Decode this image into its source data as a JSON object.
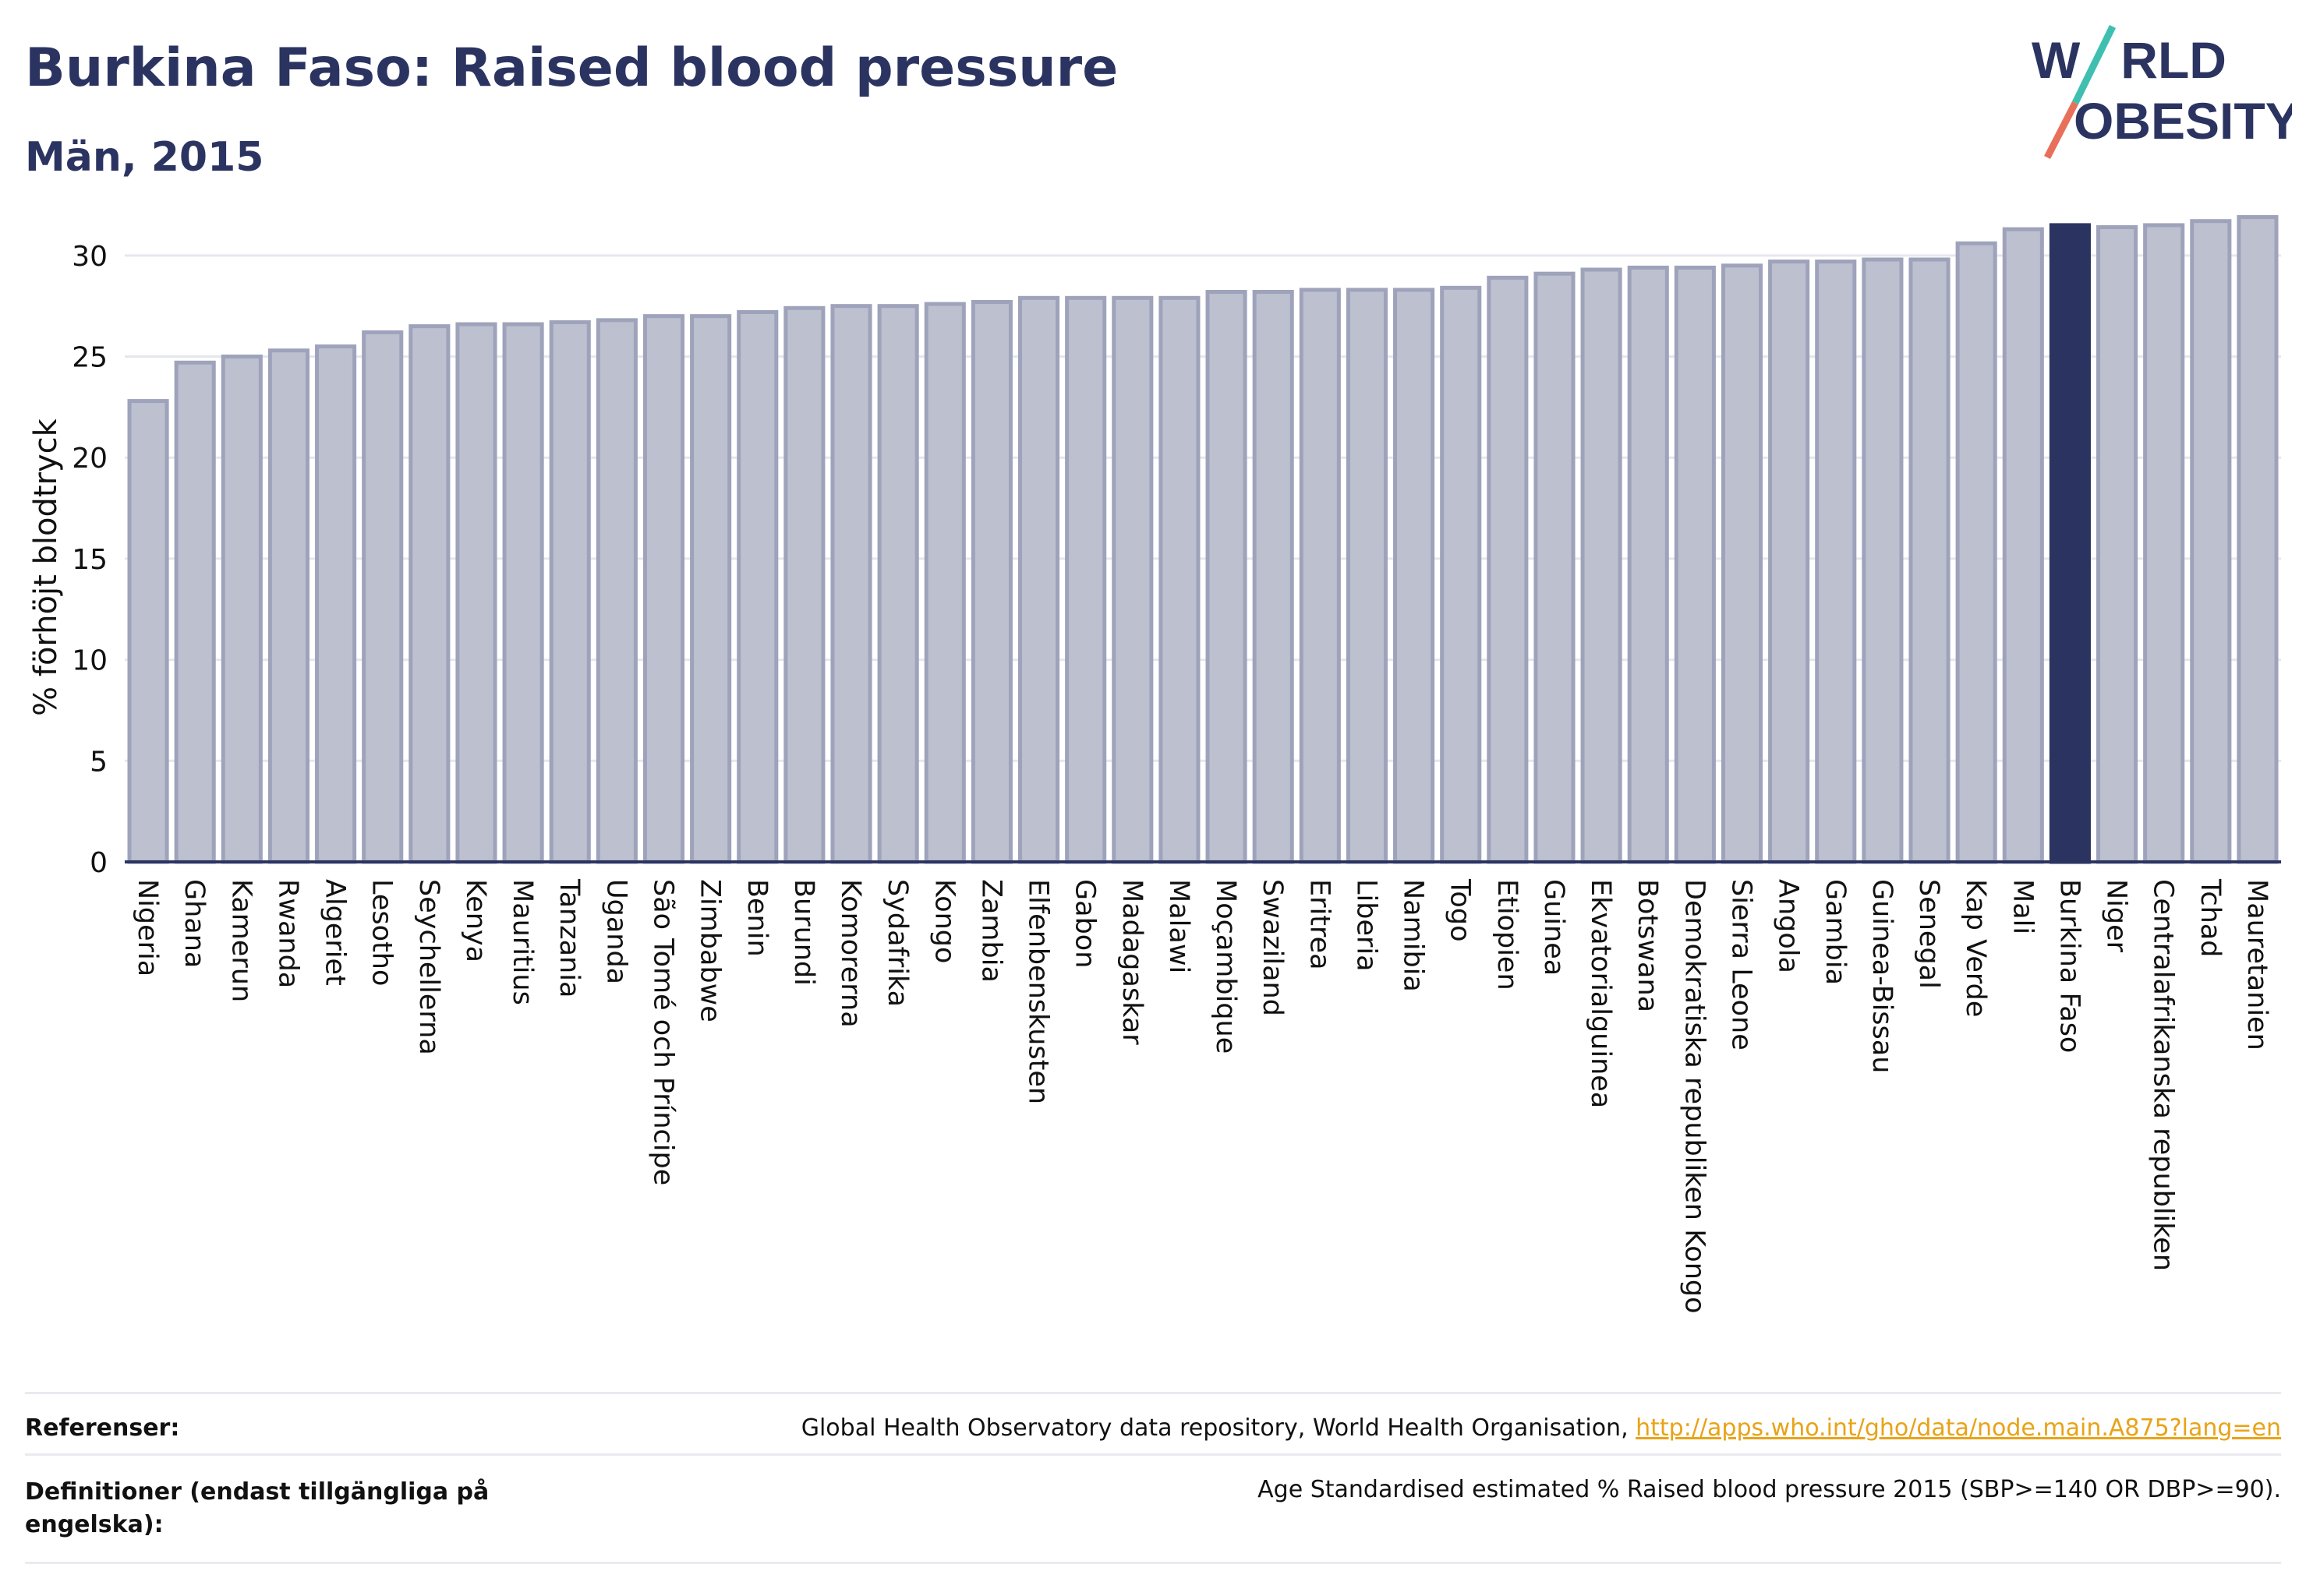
{
  "header": {
    "title": "Burkina Faso: Raised blood pressure",
    "subtitle": "Män, 2015"
  },
  "logo": {
    "line1_left": "W",
    "line1_right": "RLD",
    "line2_left": "O",
    "line2_right": "BESITY",
    "text_color": "#2b3461",
    "slash_colors": [
      "#3fbfb0",
      "#e8705a"
    ]
  },
  "chart_data": {
    "type": "bar",
    "ylabel": "% förhöjt blodtryck",
    "ylim": [
      0,
      33
    ],
    "yticks": [
      0,
      5,
      10,
      15,
      20,
      25,
      30
    ],
    "grid": true,
    "highlight": "Burkina Faso",
    "colors": {
      "bar": "#bcc0cf",
      "bar_edge": "#9ea3bb",
      "highlight": "#2b3461",
      "axis": "#2b3461"
    },
    "categories": [
      "Nigeria",
      "Ghana",
      "Kamerun",
      "Rwanda",
      "Algeriet",
      "Lesotho",
      "Seychellerna",
      "Kenya",
      "Mauritius",
      "Tanzania",
      "Uganda",
      "São Tomé och Príncipe",
      "Zimbabwe",
      "Benin",
      "Burundi",
      "Komorerna",
      "Sydafrika",
      "Kongo",
      "Zambia",
      "Elfenbenskusten",
      "Gabon",
      "Madagaskar",
      "Malawi",
      "Moçambique",
      "Swaziland",
      "Eritrea",
      "Liberia",
      "Namibia",
      "Togo",
      "Etiopien",
      "Guinea",
      "Ekvatorialguinea",
      "Botswana",
      "Demokratiska republiken Kongo",
      "Sierra Leone",
      "Angola",
      "Gambia",
      "Guinea-Bissau",
      "Senegal",
      "Kap Verde",
      "Mali",
      "Burkina Faso",
      "Niger",
      "Centralafrikanska republiken",
      "Tchad",
      "Mauretanien"
    ],
    "values": [
      22.8,
      24.7,
      25.0,
      25.3,
      25.5,
      26.2,
      26.5,
      26.6,
      26.6,
      26.7,
      26.8,
      27.0,
      27.0,
      27.2,
      27.4,
      27.5,
      27.5,
      27.6,
      27.7,
      27.9,
      27.9,
      27.9,
      27.9,
      28.2,
      28.2,
      28.3,
      28.3,
      28.3,
      28.4,
      28.9,
      29.1,
      29.3,
      29.4,
      29.4,
      29.5,
      29.7,
      29.7,
      29.8,
      29.8,
      30.6,
      31.3,
      31.5,
      31.4,
      31.5,
      31.7,
      31.9
    ]
  },
  "footer": {
    "references_label": "Referenser:",
    "references_text": "Global Health Observatory data repository, World Health Organisation, ",
    "references_link": "http://apps.who.int/gho/data/node.main.A875?lang=en",
    "definitions_label": "Definitioner (endast tillgängliga på engelska):",
    "definitions_text": "Age Standardised estimated % Raised blood pressure 2015 (SBP>=140 OR DBP>=90)."
  }
}
